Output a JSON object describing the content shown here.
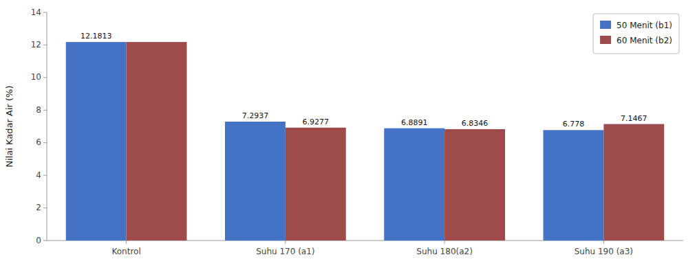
{
  "chart_data": {
    "type": "bar",
    "ylabel": "Nilai Kadar Air (%)",
    "categories": [
      "Kontrol",
      "Suhu 170 (a1)",
      "Suhu 180(a2)",
      "Suhu 190 (a3)"
    ],
    "series": [
      {
        "name": "50 Menit (b1)",
        "color": "#4472C4",
        "values": [
          12.1813,
          7.2937,
          6.8891,
          6.778
        ]
      },
      {
        "name": "60 Menit (b2)",
        "color": "#9E4B4B",
        "values": [
          12.1813,
          6.9277,
          6.8346,
          7.1467
        ],
        "value_labels": [
          null,
          "6.9277",
          "6.8346",
          "7.1467"
        ]
      }
    ],
    "ylim": [
      0,
      14
    ],
    "yticks": [
      0,
      2,
      4,
      6,
      8,
      10,
      12,
      14
    ],
    "grid": false,
    "legend": "upper right",
    "data_labels": true
  }
}
